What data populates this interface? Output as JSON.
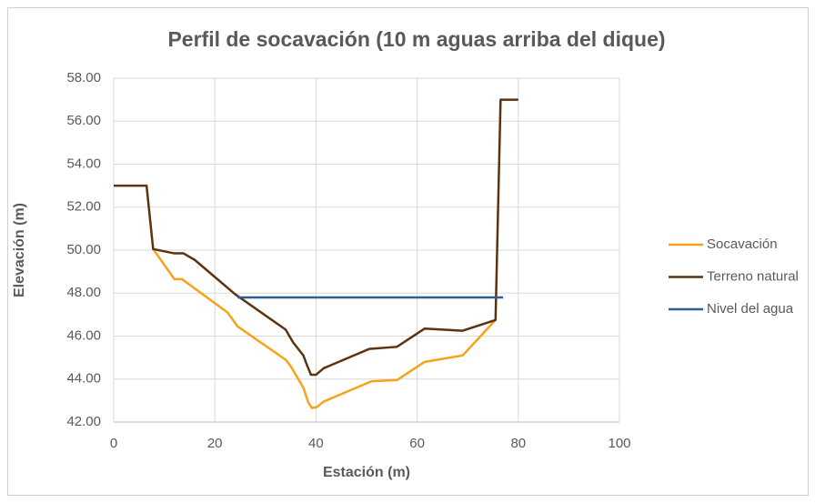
{
  "chart_data": {
    "type": "line",
    "title": "Perfil de socavación (10 m aguas arriba del dique)",
    "x_label": "Estación (m)",
    "y_label": "Elevación (m)",
    "xlim": [
      0,
      100
    ],
    "xticks": [
      0,
      20,
      40,
      60,
      80,
      100
    ],
    "ylim": [
      42,
      58
    ],
    "yticks": [
      {
        "value": 42,
        "label": "42.00"
      },
      {
        "value": 44,
        "label": "44.00"
      },
      {
        "value": 46,
        "label": "46.00"
      },
      {
        "value": 48,
        "label": "48.00"
      },
      {
        "value": 50,
        "label": "50.00"
      },
      {
        "value": 52,
        "label": "52.00"
      },
      {
        "value": 54,
        "label": "54.00"
      },
      {
        "value": 56,
        "label": "56.00"
      },
      {
        "value": 58,
        "label": "58.00"
      }
    ],
    "grid": true,
    "legend": "right",
    "series": [
      {
        "name": "Socavación",
        "color": "#f5a31a",
        "x": [
          7.8,
          12,
          13.5,
          22.5,
          24.5,
          34,
          35,
          37.5,
          38.5,
          39.2,
          40.2,
          41.5,
          43,
          51,
          56,
          61.5,
          69,
          75.5
        ],
        "values": [
          50.05,
          48.65,
          48.65,
          47.1,
          46.45,
          44.9,
          44.6,
          43.6,
          42.9,
          42.65,
          42.7,
          42.95,
          43.1,
          43.9,
          43.95,
          44.8,
          45.1,
          46.75
        ]
      },
      {
        "name": "Terreno natural",
        "color": "#5c3311",
        "x": [
          0,
          6.5,
          7.8,
          12,
          13.8,
          16,
          24,
          34,
          35.5,
          37.5,
          38.3,
          39,
          40,
          40.5,
          41.5,
          43,
          50.5,
          56,
          61.5,
          69,
          75.5,
          76.5,
          80
        ],
        "values": [
          53,
          53,
          50.05,
          49.85,
          49.85,
          49.55,
          47.95,
          46.3,
          45.7,
          45.1,
          44.6,
          44.2,
          44.2,
          44.3,
          44.5,
          44.65,
          45.4,
          45.5,
          46.35,
          46.25,
          46.75,
          57,
          57
        ]
      },
      {
        "name": "Nivel del agua",
        "color": "#2e5e96",
        "x": [
          24.5,
          77
        ],
        "values": [
          47.8,
          47.8
        ]
      }
    ]
  }
}
